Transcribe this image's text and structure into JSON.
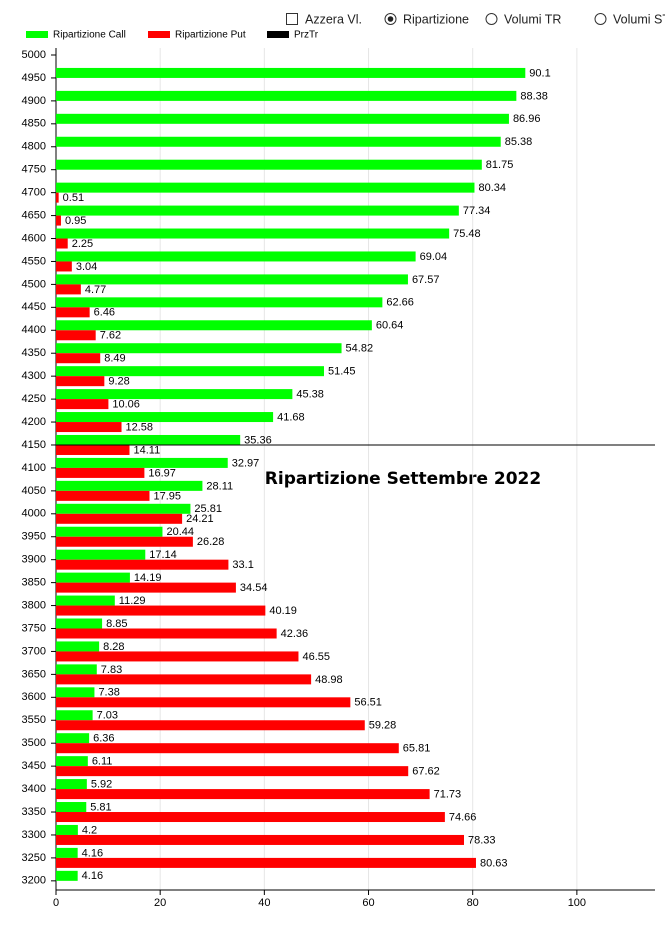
{
  "controls": [
    {
      "label": "Azzera Vl.",
      "type": "checkbox",
      "checked": false
    },
    {
      "label": "Ripartizione",
      "type": "radio",
      "checked": true
    },
    {
      "label": "Volumi TR",
      "type": "radio",
      "checked": false
    },
    {
      "label": "Volumi ST",
      "type": "radio",
      "checked": false
    }
  ],
  "chart_data": {
    "type": "hbar",
    "title": "Ripartizione Settembre 2022",
    "categories": [
      5000,
      4950,
      4900,
      4850,
      4800,
      4750,
      4700,
      4650,
      4600,
      4550,
      4500,
      4450,
      4400,
      4350,
      4300,
      4250,
      4200,
      4150,
      4100,
      4050,
      4000,
      3950,
      3900,
      3850,
      3800,
      3750,
      3700,
      3650,
      3600,
      3550,
      3500,
      3450,
      3400,
      3350,
      3300,
      3250,
      3200
    ],
    "series": [
      {
        "name": "Ripartizione Call",
        "color": "#00ff00",
        "values": [
          null,
          90.1,
          88.38,
          86.96,
          85.38,
          81.75,
          80.34,
          77.34,
          75.48,
          69.04,
          67.57,
          62.66,
          60.64,
          54.82,
          51.45,
          45.38,
          41.68,
          35.36,
          32.97,
          28.11,
          25.81,
          20.44,
          17.14,
          14.19,
          11.29,
          8.85,
          8.28,
          7.83,
          7.38,
          7.03,
          6.36,
          6.11,
          5.92,
          5.81,
          4.2,
          4.16,
          4.16
        ]
      },
      {
        "name": "Ripartizione Put",
        "color": "#ff0000",
        "values": [
          null,
          null,
          null,
          null,
          null,
          null,
          0.51,
          0.95,
          2.25,
          3.04,
          4.77,
          6.46,
          7.62,
          8.49,
          9.28,
          10.06,
          12.58,
          14.11,
          16.97,
          17.95,
          24.21,
          26.28,
          33.1,
          34.54,
          40.19,
          42.36,
          46.55,
          48.98,
          56.51,
          59.28,
          65.81,
          67.62,
          71.73,
          74.66,
          78.33,
          80.63,
          null
        ]
      }
    ],
    "reference_line": {
      "name": "PrzTr",
      "color": "#000000",
      "value": 4150
    },
    "xlim": [
      0,
      115
    ],
    "xticks": [
      0,
      20,
      40,
      60,
      80,
      100
    ],
    "grid": true
  }
}
